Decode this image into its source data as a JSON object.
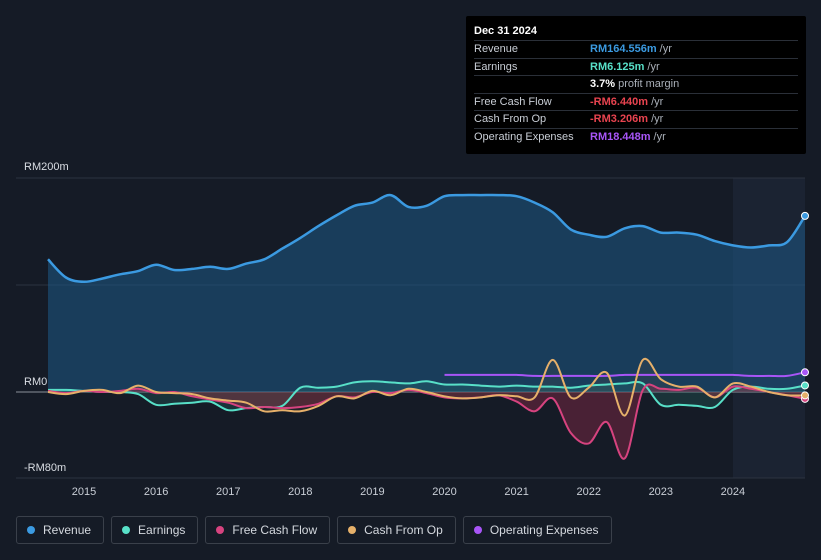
{
  "tooltip": {
    "date": "Dec 31 2024",
    "rows": [
      {
        "label": "Revenue",
        "value": "RM164.556m",
        "unit": "/yr",
        "color": "#3b9ae1"
      },
      {
        "label": "Earnings",
        "value": "RM6.125m",
        "unit": "/yr",
        "color": "#58e0c8"
      },
      {
        "label": "",
        "value": "3.7%",
        "unit": "profit margin",
        "color": "#ffffff"
      },
      {
        "label": "Free Cash Flow",
        "value": "-RM6.440m",
        "unit": "/yr",
        "color": "#e8434f"
      },
      {
        "label": "Cash From Op",
        "value": "-RM3.206m",
        "unit": "/yr",
        "color": "#e8434f"
      },
      {
        "label": "Operating Expenses",
        "value": "RM18.448m",
        "unit": "/yr",
        "color": "#a855f7"
      }
    ]
  },
  "legend": [
    {
      "name": "revenue",
      "label": "Revenue",
      "color": "#3b9ae1"
    },
    {
      "name": "earnings",
      "label": "Earnings",
      "color": "#58e0c8"
    },
    {
      "name": "free-cash-flow",
      "label": "Free Cash Flow",
      "color": "#d6437f"
    },
    {
      "name": "cash-from-op",
      "label": "Cash From Op",
      "color": "#e6b06a"
    },
    {
      "name": "operating-expenses",
      "label": "Operating Expenses",
      "color": "#a855f7"
    }
  ],
  "chart_data": {
    "type": "area",
    "title": "",
    "xlabel": "",
    "ylabel": "",
    "y_tick_labels": [
      "RM200m",
      "RM0",
      "-RM80m"
    ],
    "ylim": [
      -80,
      200
    ],
    "xlim": [
      2014.0,
      2025.0
    ],
    "x_ticks": [
      2015,
      2016,
      2017,
      2018,
      2019,
      2020,
      2021,
      2022,
      2023,
      2024
    ],
    "x_tick_labels": [
      "2015",
      "2016",
      "2017",
      "2018",
      "2019",
      "2020",
      "2021",
      "2022",
      "2023",
      "2024"
    ],
    "forecast_shade_start": 2024.0,
    "series": [
      {
        "name": "Revenue",
        "color": "#3b9ae1",
        "x": [
          2014.5,
          2014.75,
          2015.0,
          2015.25,
          2015.5,
          2015.75,
          2016.0,
          2016.25,
          2016.5,
          2016.75,
          2017.0,
          2017.25,
          2017.5,
          2017.75,
          2018.0,
          2018.25,
          2018.5,
          2018.75,
          2019.0,
          2019.25,
          2019.5,
          2019.75,
          2020.0,
          2020.25,
          2020.5,
          2020.75,
          2021.0,
          2021.25,
          2021.5,
          2021.75,
          2022.0,
          2022.25,
          2022.5,
          2022.75,
          2023.0,
          2023.25,
          2023.5,
          2023.75,
          2024.0,
          2024.25,
          2024.5,
          2024.75,
          2025.0
        ],
        "values": [
          124,
          107,
          103,
          106,
          110,
          113,
          119,
          114,
          115,
          117,
          115,
          120,
          124,
          134,
          144,
          155,
          165,
          174,
          177,
          184,
          173,
          174,
          183,
          184,
          184,
          184,
          183,
          177,
          168,
          152,
          147,
          145,
          153,
          155,
          149,
          149,
          147,
          141,
          137,
          135,
          137,
          140,
          164.6
        ]
      },
      {
        "name": "Earnings",
        "color": "#58e0c8",
        "x": [
          2014.5,
          2014.75,
          2015.0,
          2015.25,
          2015.5,
          2015.75,
          2016.0,
          2016.25,
          2016.5,
          2016.75,
          2017.0,
          2017.25,
          2017.5,
          2017.75,
          2018.0,
          2018.25,
          2018.5,
          2018.75,
          2019.0,
          2019.25,
          2019.5,
          2019.75,
          2020.0,
          2020.25,
          2020.5,
          2020.75,
          2021.0,
          2021.25,
          2021.5,
          2021.75,
          2022.0,
          2022.25,
          2022.5,
          2022.75,
          2023.0,
          2023.25,
          2023.5,
          2023.75,
          2024.0,
          2024.25,
          2024.5,
          2024.75,
          2025.0
        ],
        "values": [
          2,
          2,
          1,
          0,
          0,
          -2,
          -12,
          -11,
          -10,
          -9,
          -17,
          -15,
          -14,
          -13,
          4,
          4,
          5,
          9,
          10,
          9,
          8,
          10,
          7,
          7,
          6,
          5,
          6,
          5,
          5,
          4,
          6,
          7,
          8,
          8,
          -12,
          -12,
          -13,
          -14,
          2,
          5,
          3,
          3,
          6.1
        ]
      },
      {
        "name": "Free Cash Flow",
        "color": "#d6437f",
        "x": [
          2014.5,
          2014.75,
          2015.0,
          2015.25,
          2015.5,
          2015.75,
          2016.0,
          2016.25,
          2016.5,
          2016.75,
          2017.0,
          2017.25,
          2017.5,
          2017.75,
          2018.0,
          2018.25,
          2018.5,
          2018.75,
          2019.0,
          2019.25,
          2019.5,
          2019.75,
          2020.0,
          2020.25,
          2020.5,
          2020.75,
          2021.0,
          2021.25,
          2021.5,
          2021.75,
          2022.0,
          2022.25,
          2022.5,
          2022.75,
          2023.0,
          2023.25,
          2023.5,
          2023.75,
          2024.0,
          2024.25,
          2024.5,
          2024.75,
          2025.0
        ],
        "values": [
          1,
          -1,
          1,
          0,
          1,
          3,
          -1,
          0,
          -4,
          -7,
          -10,
          -15,
          -14,
          -15,
          -14,
          -11,
          -4,
          -5,
          0,
          -1,
          2,
          -1,
          -5,
          -6,
          -5,
          -3,
          -9,
          -18,
          -6,
          -38,
          -48,
          -28,
          -62,
          2,
          3,
          2,
          4,
          -5,
          5,
          3,
          0,
          -3,
          -6.4
        ]
      },
      {
        "name": "Cash From Op",
        "color": "#e6b06a",
        "x": [
          2014.5,
          2014.75,
          2015.0,
          2015.25,
          2015.5,
          2015.75,
          2016.0,
          2016.25,
          2016.5,
          2016.75,
          2017.0,
          2017.25,
          2017.5,
          2017.75,
          2018.0,
          2018.25,
          2018.5,
          2018.75,
          2019.0,
          2019.25,
          2019.5,
          2019.75,
          2020.0,
          2020.25,
          2020.5,
          2020.75,
          2021.0,
          2021.25,
          2021.5,
          2021.75,
          2022.0,
          2022.25,
          2022.5,
          2022.75,
          2023.0,
          2023.25,
          2023.5,
          2023.75,
          2024.0,
          2024.25,
          2024.5,
          2024.75,
          2025.0
        ],
        "values": [
          0,
          -2,
          1,
          2,
          -1,
          6,
          0,
          -1,
          -2,
          -6,
          -8,
          -10,
          -18,
          -17,
          -18,
          -13,
          -4,
          -6,
          1,
          -3,
          3,
          0,
          -4,
          -6,
          -5,
          -3,
          -4,
          -5,
          30,
          -5,
          4,
          18,
          -22,
          30,
          12,
          5,
          5,
          -5,
          8,
          5,
          0,
          -3,
          -3.2
        ]
      },
      {
        "name": "Operating Expenses",
        "color": "#a855f7",
        "x": [
          2020.0,
          2020.25,
          2020.5,
          2020.75,
          2021.0,
          2021.25,
          2021.5,
          2021.75,
          2022.0,
          2022.25,
          2022.5,
          2022.75,
          2023.0,
          2023.25,
          2023.5,
          2023.75,
          2024.0,
          2024.25,
          2024.5,
          2024.75,
          2025.0
        ],
        "values": [
          16,
          16,
          16,
          16,
          16,
          15,
          15,
          15,
          15,
          15,
          16,
          16,
          16,
          16,
          16,
          16,
          16,
          15,
          15,
          15,
          18.4
        ]
      }
    ]
  }
}
